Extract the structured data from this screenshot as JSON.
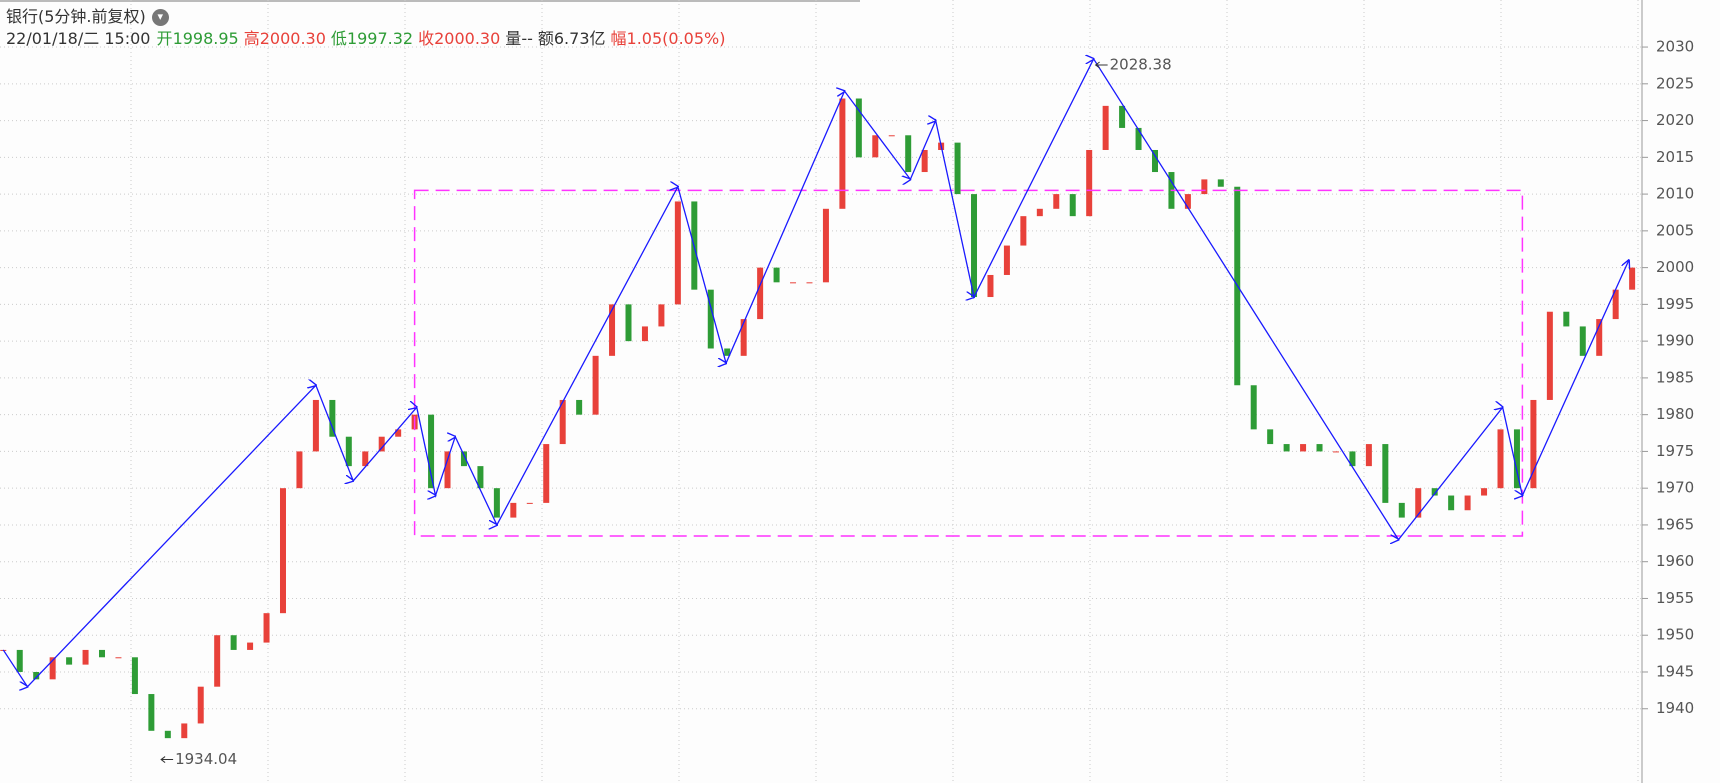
{
  "header": {
    "title": "银行(5分钟.前复权)",
    "datetime": "22/01/18/二 15:00",
    "fields": [
      {
        "label": "开",
        "value": "1998.95",
        "color": "#2e9c36"
      },
      {
        "label": "高",
        "value": "2000.30",
        "color": "#e8413a"
      },
      {
        "label": "低",
        "value": "1997.32",
        "color": "#2e9c36"
      },
      {
        "label": "收",
        "value": "2000.30",
        "color": "#e8413a"
      },
      {
        "label": "量",
        "value": "--",
        "color": "#333333"
      },
      {
        "label": "额",
        "value": "6.73亿",
        "color": "#333333"
      },
      {
        "label": "幅",
        "value": "1.05(0.05%)",
        "color": "#e8413a"
      }
    ]
  },
  "chart_data": {
    "type": "candlestick",
    "values": [
      1948,
      1945,
      1944,
      1947,
      1946,
      1948,
      1947,
      1947,
      1942,
      1937,
      1936,
      1938,
      1943,
      1950,
      1948,
      1949,
      1953,
      1970,
      1975,
      1982,
      1977,
      1973,
      1975,
      1977,
      1978,
      1980,
      1970,
      1975,
      1973,
      1970,
      1966,
      1968,
      1968,
      1976,
      1982,
      1980,
      1988,
      1995,
      1990,
      1992,
      1995,
      2009,
      1997,
      1989,
      1988,
      1993,
      2000,
      1998,
      1998,
      1998,
      2008,
      2023,
      2015,
      2018,
      2018,
      2013,
      2016,
      2017,
      2010,
      1996,
      1999,
      2003,
      2007,
      2008,
      2010,
      2007,
      2016,
      2022,
      2019,
      2016,
      2013,
      2008,
      2010,
      2012,
      2011,
      1984,
      1978,
      1976,
      1975,
      1976,
      1975,
      1975,
      1973,
      1976,
      1968,
      1966,
      1970,
      1969,
      1967,
      1969,
      1970,
      1978,
      1970,
      1982,
      1994,
      1992,
      1988,
      1993,
      1997,
      2000
    ],
    "up_color": "#e8413a",
    "down_color": "#2e9c36",
    "xlim": [
      -0.2,
      99.6
    ],
    "ylim": [
      1929.9,
      2036.4
    ],
    "yticks": [
      1940,
      1945,
      1950,
      1955,
      1960,
      1965,
      1970,
      1975,
      1980,
      1985,
      1990,
      1995,
      2000,
      2005,
      2010,
      2015,
      2020,
      2025,
      2030
    ],
    "grid": true,
    "zigzag": {
      "color": "#1a1aff",
      "x": [
        0,
        1.47,
        19,
        21.27,
        25.13,
        26.27,
        27.47,
        30,
        41,
        43.93,
        51.13,
        55.13,
        56.67,
        59,
        66.27,
        84.8,
        91.13,
        92.33,
        98.8
      ],
      "values": [
        1948,
        1943,
        1984,
        1971,
        1981,
        1969,
        1977,
        1965,
        2011,
        1987,
        2024,
        2012,
        2020,
        1996,
        2028.38,
        1963,
        1981,
        1969,
        2001
      ]
    },
    "box": {
      "color": "#ff33ff",
      "x": [
        25,
        92.33
      ],
      "y": [
        1963.5,
        2010.5
      ]
    },
    "annotations": [
      {
        "x": 66.27,
        "value": 2028.38
      },
      {
        "x": 9.47,
        "value": 1934.04
      }
    ]
  }
}
